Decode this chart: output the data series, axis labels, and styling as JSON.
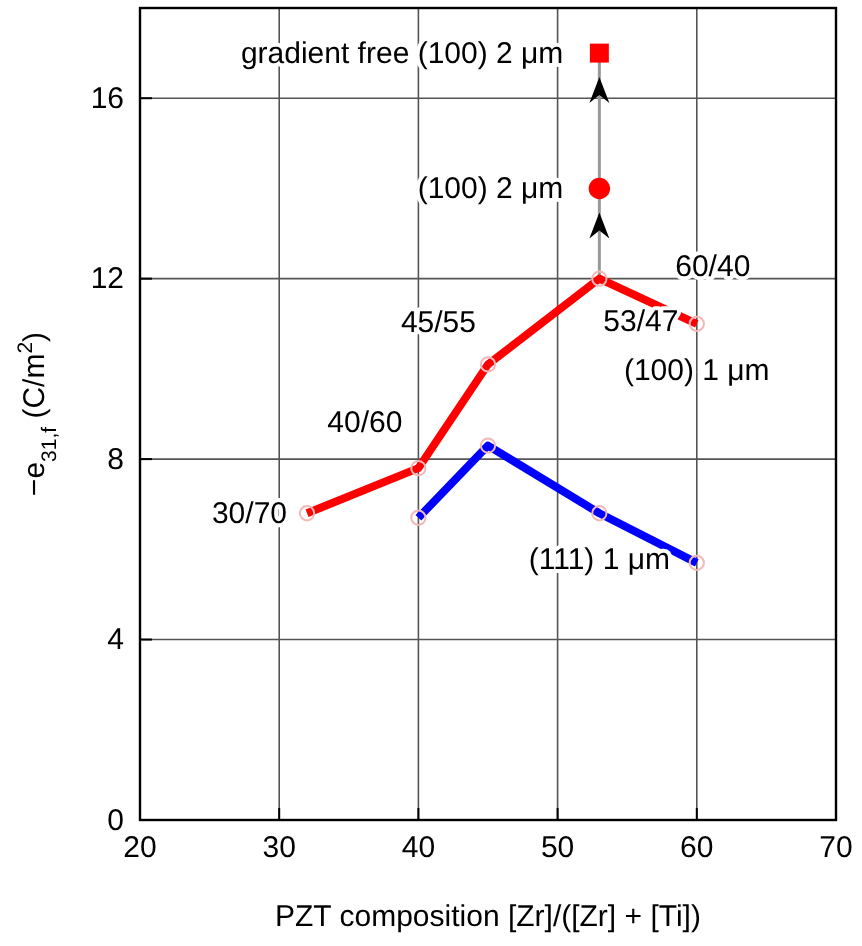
{
  "chart_data": {
    "type": "line",
    "xlabel": "PZT composition [Zr]/([Zr] + [Ti])",
    "ylabel": "−e$_{31,f}$ (C/m$^{2}$)",
    "xlim": [
      20,
      70
    ],
    "xticks": [
      20,
      30,
      40,
      50,
      60,
      70
    ],
    "ylim": [
      0,
      18
    ],
    "yticks": [
      0,
      4,
      8,
      12,
      16
    ],
    "grid": true,
    "marker": "circle",
    "line_style": "solid",
    "series": [
      {
        "color": "#ff0000",
        "x": [
          32,
          40,
          45,
          53,
          60
        ],
        "values": [
          6.8,
          7.8,
          10.1,
          12.0,
          11.0
        ]
      },
      {
        "color": "#0000ff",
        "x": [
          40,
          45,
          53,
          60
        ],
        "values": [
          6.7,
          8.3,
          6.8,
          5.7
        ]
      },
      {
        "type": "scatter",
        "color": "#ff0000",
        "marker": "circle",
        "x": [
          53
        ],
        "values": [
          14.0
        ]
      },
      {
        "type": "scatter",
        "color": "#ff0000",
        "marker": "square",
        "x": [
          53
        ],
        "values": [
          17.0
        ]
      }
    ],
    "annotations": [
      {
        "text": "gradient free (100) 2 μm",
        "x": 53,
        "y": 17.0
      },
      {
        "text": "(100) 2 μm",
        "x": 53,
        "y": 14.0
      },
      {
        "text": "30/70",
        "x": 32,
        "y": 6.8
      },
      {
        "text": "40/60",
        "x": 40,
        "y": 7.8
      },
      {
        "text": "45/55",
        "x": 45,
        "y": 10.1
      },
      {
        "text": "53/47",
        "x": 53,
        "y": 12.0
      },
      {
        "text": "60/40",
        "x": 60,
        "y": 11.0
      },
      {
        "text": "(100) 1 μm",
        "x": 60,
        "y": 11.0
      },
      {
        "text": "(111) 1 μm",
        "x": 53,
        "y": 6.8
      }
    ]
  }
}
